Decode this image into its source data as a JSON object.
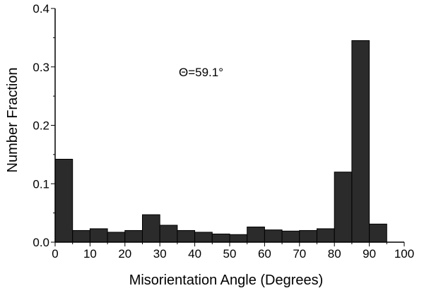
{
  "chart_data": {
    "type": "bar",
    "xlabel": "Misorientation Angle (Degrees)",
    "ylabel": "Number Fraction",
    "xlim": [
      0,
      100
    ],
    "ylim": [
      0,
      0.4
    ],
    "x_ticks": [
      "0",
      "10",
      "20",
      "30",
      "40",
      "50",
      "60",
      "70",
      "80",
      "90",
      "100"
    ],
    "y_ticks": [
      "0.0",
      "0.1",
      "0.2",
      "0.3",
      "0.4"
    ],
    "annotation": "Θ=59.1°",
    "bar_color": "#2b2b2b",
    "bin_width": 5,
    "bins": [
      {
        "x0": 0,
        "value": 0.142
      },
      {
        "x0": 5,
        "value": 0.02
      },
      {
        "x0": 10,
        "value": 0.023
      },
      {
        "x0": 15,
        "value": 0.017
      },
      {
        "x0": 20,
        "value": 0.02
      },
      {
        "x0": 25,
        "value": 0.047
      },
      {
        "x0": 30,
        "value": 0.029
      },
      {
        "x0": 35,
        "value": 0.02
      },
      {
        "x0": 40,
        "value": 0.017
      },
      {
        "x0": 45,
        "value": 0.014
      },
      {
        "x0": 50,
        "value": 0.013
      },
      {
        "x0": 55,
        "value": 0.026
      },
      {
        "x0": 60,
        "value": 0.021
      },
      {
        "x0": 65,
        "value": 0.019
      },
      {
        "x0": 70,
        "value": 0.02
      },
      {
        "x0": 75,
        "value": 0.023
      },
      {
        "x0": 80,
        "value": 0.12
      },
      {
        "x0": 85,
        "value": 0.345
      },
      {
        "x0": 90,
        "value": 0.031
      }
    ]
  }
}
